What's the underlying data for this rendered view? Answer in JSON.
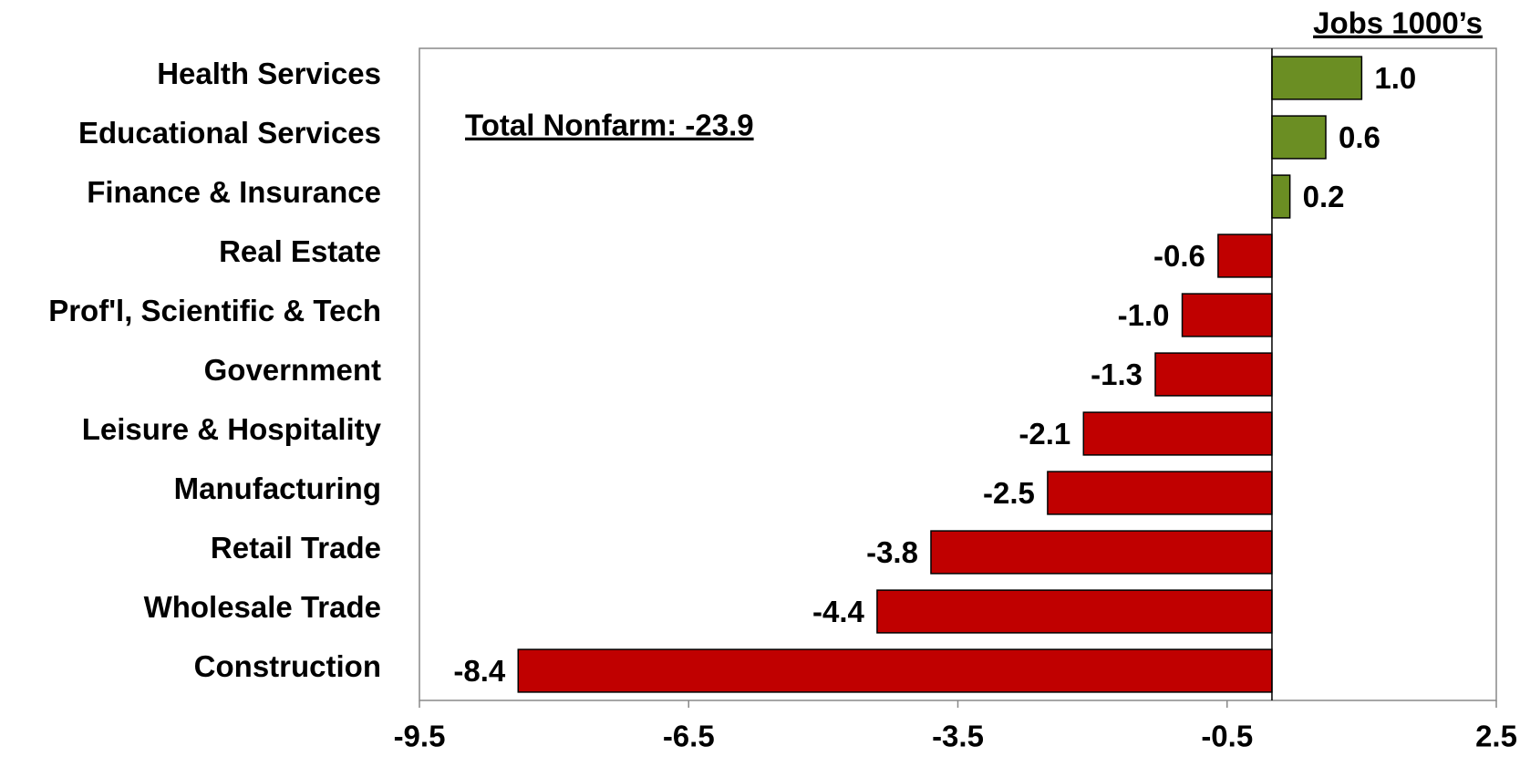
{
  "chart_data": {
    "type": "hbar",
    "title": "Jobs 1000’s",
    "annotation": "Total Nonfarm:  -23.9",
    "categories": [
      "Health Services",
      "Educational Services",
      "Finance & Insurance",
      "Real Estate",
      "Prof'l, Scientific & Tech",
      "Government",
      "Leisure & Hospitality",
      "Manufacturing",
      "Retail Trade",
      "Wholesale Trade",
      "Construction"
    ],
    "values": [
      1.0,
      0.6,
      0.2,
      -0.6,
      -1.0,
      -1.3,
      -2.1,
      -2.5,
      -3.8,
      -4.4,
      -8.4
    ],
    "value_labels": [
      "1.0",
      "0.6",
      "0.2",
      "-0.6",
      "-1.0",
      "-1.3",
      "-2.1",
      "-2.5",
      "-3.8",
      "-4.4",
      "-8.4"
    ],
    "positive_color": "#6b8e23",
    "negative_color": "#c00000",
    "xlim": [
      -9.5,
      2.5
    ],
    "xticks": [
      -9.5,
      -6.5,
      -3.5,
      -0.5,
      2.5
    ],
    "grid": false
  }
}
